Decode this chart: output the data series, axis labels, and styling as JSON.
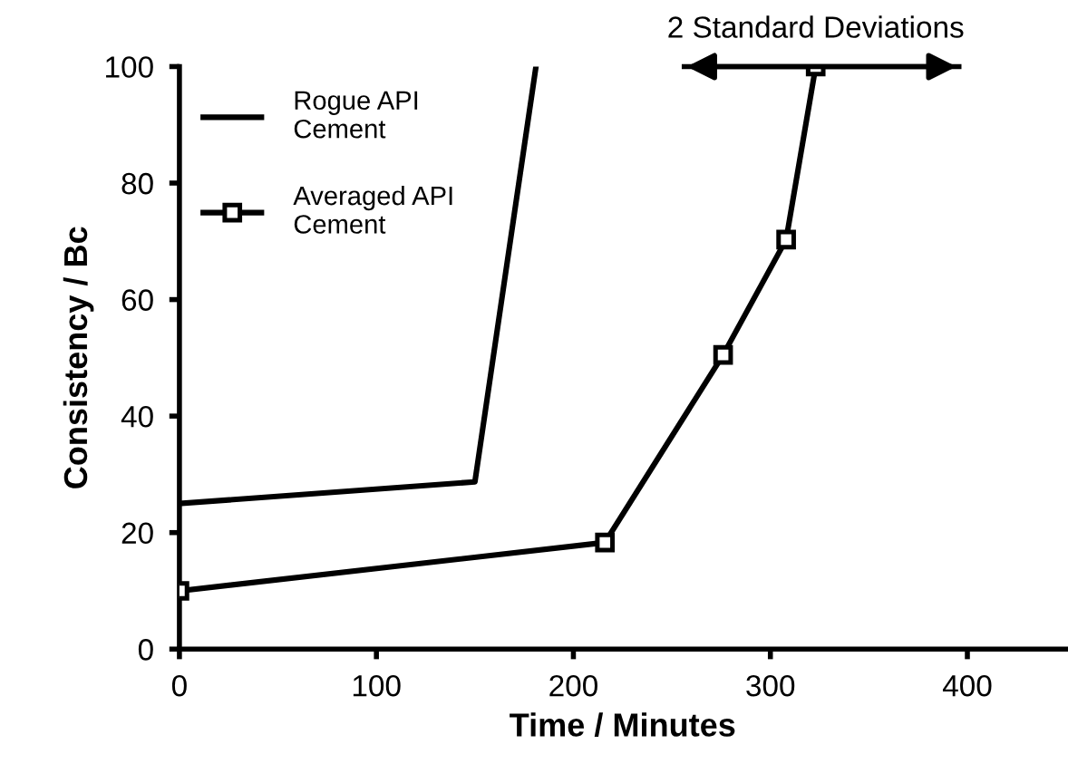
{
  "chart_data": {
    "type": "line",
    "xlabel": "Time / Minutes",
    "ylabel": "Consistency / Bc",
    "xlim": [
      0,
      450
    ],
    "xticks": [
      0,
      100,
      200,
      300,
      400
    ],
    "ylim": [
      0,
      100
    ],
    "yticks": [
      0,
      20,
      40,
      60,
      80,
      100
    ],
    "grid": false,
    "legend": "top left",
    "series": [
      {
        "name": "Rogue API\nCement",
        "color": "#000000",
        "marker": "none",
        "x": [
          0,
          150,
          181
        ],
        "values": [
          25,
          28.7,
          100
        ]
      },
      {
        "name": "Averaged API\nCement",
        "color": "#000000",
        "marker": "square",
        "x": [
          0,
          216,
          276,
          308,
          323
        ],
        "values": [
          10,
          18.3,
          50.5,
          70.3,
          100
        ],
        "xerrors": [
          null,
          null,
          null,
          null,
          [
            255,
            397
          ]
        ]
      }
    ],
    "annotations": [
      {
        "text": "2 Standard Deviations",
        "x": 323,
        "y": 100
      }
    ]
  }
}
